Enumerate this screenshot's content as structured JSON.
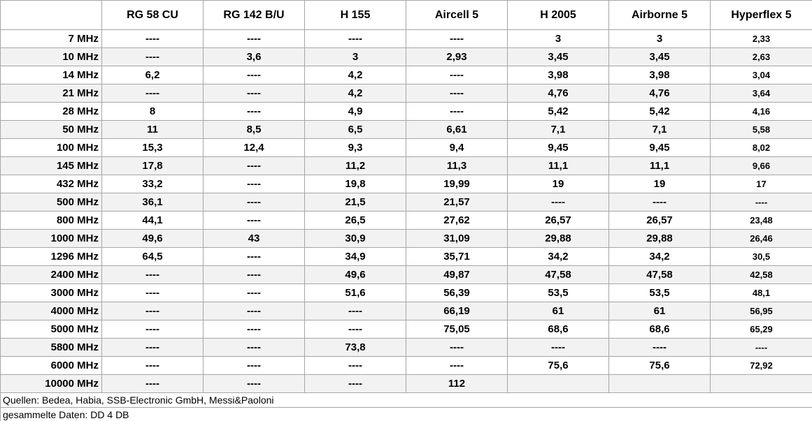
{
  "table": {
    "header": [
      null,
      "RG 58 CU",
      "RG 142 B/U",
      "H 155",
      "Aircell 5",
      "H 2005",
      "Airborne 5",
      "Hyperflex 5"
    ],
    "rows": [
      [
        "7 MHz",
        "----",
        "----",
        "----",
        "----",
        "3",
        "3",
        "2,33"
      ],
      [
        "10 MHz",
        "----",
        "3,6",
        "3",
        "2,93",
        "3,45",
        "3,45",
        "2,63"
      ],
      [
        "14 MHz",
        "6,2",
        "----",
        "4,2",
        "----",
        "3,98",
        "3,98",
        "3,04"
      ],
      [
        "21 MHz",
        "----",
        "----",
        "4,2",
        "----",
        "4,76",
        "4,76",
        "3,64"
      ],
      [
        "28 MHz",
        "8",
        "----",
        "4,9",
        "----",
        "5,42",
        "5,42",
        "4,16"
      ],
      [
        "50 MHz",
        "11",
        "8,5",
        "6,5",
        "6,61",
        "7,1",
        "7,1",
        "5,58"
      ],
      [
        "100 MHz",
        "15,3",
        "12,4",
        "9,3",
        "9,4",
        "9,45",
        "9,45",
        "8,02"
      ],
      [
        "145 MHz",
        "17,8",
        "----",
        "11,2",
        "11,3",
        "11,1",
        "11,1",
        "9,66"
      ],
      [
        "432 MHz",
        "33,2",
        "----",
        "19,8",
        "19,99",
        "19",
        "19",
        "17"
      ],
      [
        "500 MHz",
        "36,1",
        "----",
        "21,5",
        "21,57",
        "----",
        "----",
        "----"
      ],
      [
        "800 MHz",
        "44,1",
        "----",
        "26,5",
        "27,62",
        "26,57",
        "26,57",
        "23,48"
      ],
      [
        "1000 MHz",
        "49,6",
        "43",
        "30,9",
        "31,09",
        "29,88",
        "29,88",
        "26,46"
      ],
      [
        "1296 MHz",
        "64,5",
        "----",
        "34,9",
        "35,71",
        "34,2",
        "34,2",
        "30,5"
      ],
      [
        "2400 MHz",
        "----",
        "----",
        "49,6",
        "49,87",
        "47,58",
        "47,58",
        "42,58"
      ],
      [
        "3000 MHz",
        "----",
        "----",
        "51,6",
        "56,39",
        "53,5",
        "53,5",
        "48,1"
      ],
      [
        "4000 MHz",
        "----",
        "----",
        "----",
        "66,19",
        "61",
        "61",
        "56,95"
      ],
      [
        "5000 MHz",
        "----",
        "----",
        "----",
        "75,05",
        "68,6",
        "68,6",
        "65,29"
      ],
      [
        "5800 MHz",
        "----",
        "----",
        "73,8",
        "----",
        "----",
        "----",
        "----"
      ],
      [
        "6000 MHz",
        "----",
        "----",
        "----",
        "----",
        "75,6",
        "75,6",
        "72,92"
      ],
      [
        "10000 MHz",
        "----",
        "----",
        "----",
        "112",
        null,
        null,
        null
      ]
    ],
    "footer": [
      "Quellen: Bedea, Habia, SSB-Electronic GmbH, Messi&Paoloni",
      "gesammelte Daten: DD 4 DB"
    ]
  }
}
